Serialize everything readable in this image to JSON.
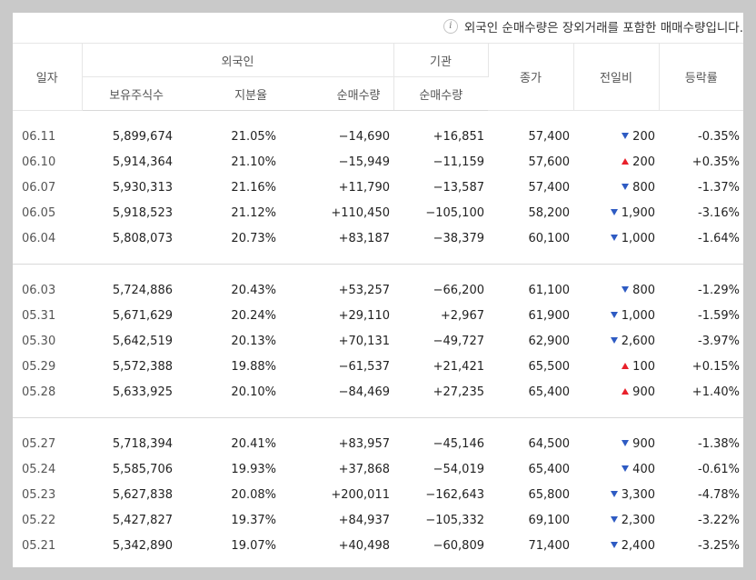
{
  "notice": {
    "text": "외국인 순매수량은 장외거래를 포함한 매매수량입니다."
  },
  "colors": {
    "up": "#e8202a",
    "down": "#2e5bc3"
  },
  "headers": {
    "date": "일자",
    "foreign": "외국인",
    "institution": "기관",
    "close": "종가",
    "change": "전일비",
    "rate": "등락률",
    "holdings": "보유주식수",
    "share": "지분율",
    "foreign_net": "순매수량",
    "inst_net": "순매수량"
  },
  "groups": [
    [
      {
        "date": "06.11",
        "holdings": "5,899,674",
        "share": "21.05%",
        "foreign_net": "−14,690",
        "inst_net": "+16,851",
        "close": "57,400",
        "change_dir": "down",
        "change": "200",
        "rate": "-0.35%"
      },
      {
        "date": "06.10",
        "holdings": "5,914,364",
        "share": "21.10%",
        "foreign_net": "−15,949",
        "inst_net": "−11,159",
        "close": "57,600",
        "change_dir": "up",
        "change": "200",
        "rate": "+0.35%"
      },
      {
        "date": "06.07",
        "holdings": "5,930,313",
        "share": "21.16%",
        "foreign_net": "+11,790",
        "inst_net": "−13,587",
        "close": "57,400",
        "change_dir": "down",
        "change": "800",
        "rate": "-1.37%"
      },
      {
        "date": "06.05",
        "holdings": "5,918,523",
        "share": "21.12%",
        "foreign_net": "+110,450",
        "inst_net": "−105,100",
        "close": "58,200",
        "change_dir": "down",
        "change": "1,900",
        "rate": "-3.16%"
      },
      {
        "date": "06.04",
        "holdings": "5,808,073",
        "share": "20.73%",
        "foreign_net": "+83,187",
        "inst_net": "−38,379",
        "close": "60,100",
        "change_dir": "down",
        "change": "1,000",
        "rate": "-1.64%"
      }
    ],
    [
      {
        "date": "06.03",
        "holdings": "5,724,886",
        "share": "20.43%",
        "foreign_net": "+53,257",
        "inst_net": "−66,200",
        "close": "61,100",
        "change_dir": "down",
        "change": "800",
        "rate": "-1.29%"
      },
      {
        "date": "05.31",
        "holdings": "5,671,629",
        "share": "20.24%",
        "foreign_net": "+29,110",
        "inst_net": "+2,967",
        "close": "61,900",
        "change_dir": "down",
        "change": "1,000",
        "rate": "-1.59%"
      },
      {
        "date": "05.30",
        "holdings": "5,642,519",
        "share": "20.13%",
        "foreign_net": "+70,131",
        "inst_net": "−49,727",
        "close": "62,900",
        "change_dir": "down",
        "change": "2,600",
        "rate": "-3.97%"
      },
      {
        "date": "05.29",
        "holdings": "5,572,388",
        "share": "19.88%",
        "foreign_net": "−61,537",
        "inst_net": "+21,421",
        "close": "65,500",
        "change_dir": "up",
        "change": "100",
        "rate": "+0.15%"
      },
      {
        "date": "05.28",
        "holdings": "5,633,925",
        "share": "20.10%",
        "foreign_net": "−84,469",
        "inst_net": "+27,235",
        "close": "65,400",
        "change_dir": "up",
        "change": "900",
        "rate": "+1.40%"
      }
    ],
    [
      {
        "date": "05.27",
        "holdings": "5,718,394",
        "share": "20.41%",
        "foreign_net": "+83,957",
        "inst_net": "−45,146",
        "close": "64,500",
        "change_dir": "down",
        "change": "900",
        "rate": "-1.38%"
      },
      {
        "date": "05.24",
        "holdings": "5,585,706",
        "share": "19.93%",
        "foreign_net": "+37,868",
        "inst_net": "−54,019",
        "close": "65,400",
        "change_dir": "down",
        "change": "400",
        "rate": "-0.61%"
      },
      {
        "date": "05.23",
        "holdings": "5,627,838",
        "share": "20.08%",
        "foreign_net": "+200,011",
        "inst_net": "−162,643",
        "close": "65,800",
        "change_dir": "down",
        "change": "3,300",
        "rate": "-4.78%"
      },
      {
        "date": "05.22",
        "holdings": "5,427,827",
        "share": "19.37%",
        "foreign_net": "+84,937",
        "inst_net": "−105,332",
        "close": "69,100",
        "change_dir": "down",
        "change": "2,300",
        "rate": "-3.22%"
      },
      {
        "date": "05.21",
        "holdings": "5,342,890",
        "share": "19.07%",
        "foreign_net": "+40,498",
        "inst_net": "−60,809",
        "close": "71,400",
        "change_dir": "down",
        "change": "2,400",
        "rate": "-3.25%"
      }
    ]
  ]
}
